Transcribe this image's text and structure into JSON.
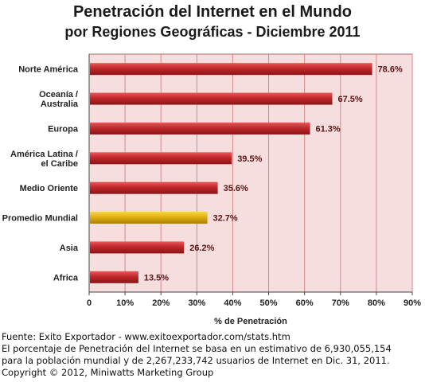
{
  "chart_data": {
    "type": "bar",
    "orientation": "horizontal",
    "title": "Penetración del Internet en el Mundo",
    "subtitle": "por Regiones Geográficas - Diciembre 2011",
    "xlabel": "% de Penetración",
    "ylabel": "",
    "xlim": [
      0,
      90
    ],
    "x_ticks": [
      "0",
      "10%",
      "20%",
      "30%",
      "40%",
      "50%",
      "60%",
      "70%",
      "80%",
      "90%"
    ],
    "grid": true,
    "categories": [
      [
        "Norte América"
      ],
      [
        "Oceanía  /",
        "Australia"
      ],
      [
        "Europa"
      ],
      [
        "América Latina /",
        "el Caribe"
      ],
      [
        "Medio Oriente"
      ],
      [
        "Promedio Mundial"
      ],
      [
        "Asia"
      ],
      [
        "Africa"
      ]
    ],
    "values": [
      78.6,
      67.5,
      61.3,
      39.5,
      35.6,
      32.7,
      26.2,
      13.5
    ],
    "value_labels": [
      "78.6%",
      "67.5%",
      "61.3%",
      "39.5%",
      "35.6%",
      "32.7%",
      "26.2%",
      "13.5%"
    ],
    "highlight_index": 5,
    "colors": {
      "bar": "#c0282a",
      "highlight": "#e0b012",
      "plot_background": "#f6dede",
      "gridline": "#d08a8a",
      "value_label": "#5a1414"
    }
  },
  "footer": {
    "source": "Fuente: Exito Exportador - www.exitoexportador.com/stats.htm",
    "note_line1": "El porcentaje de Penetración del Internet se basa en un estimativo de 6,930,055,154",
    "note_line2": "para la población mundial y de 2,267,233,742 usuarios de Internet en Dic. 31, 2011.",
    "copyright": "Copyright © 2012, Miniwatts Marketing Group"
  }
}
